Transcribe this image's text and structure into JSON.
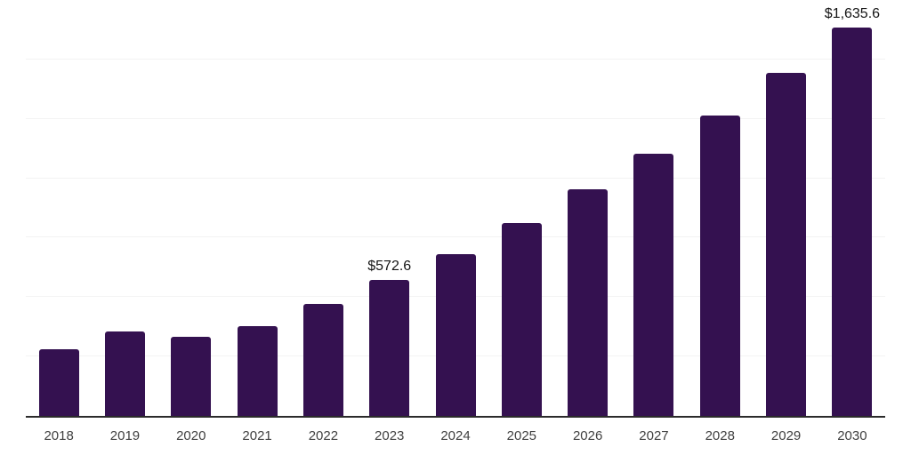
{
  "chart_data": {
    "type": "bar",
    "title": "",
    "xlabel": "",
    "ylabel": "",
    "categories": [
      "2018",
      "2019",
      "2020",
      "2021",
      "2022",
      "2023",
      "2024",
      "2025",
      "2026",
      "2027",
      "2028",
      "2029",
      "2030"
    ],
    "values": [
      279,
      357,
      334,
      379,
      471,
      572.6,
      680,
      810,
      955,
      1104,
      1264,
      1442,
      1635.6
    ],
    "data_labels": [
      "",
      "",
      "",
      "",
      "",
      "$572.6",
      "",
      "",
      "",
      "",
      "",
      "",
      "$1,635.6"
    ],
    "ylim": [
      0,
      1750
    ],
    "gridline_interval": 250,
    "grid": "horizontal",
    "legend": "none",
    "bar_color": "#341150",
    "axis_line_color": "#2b2b2b",
    "gridline_color": "#f3f3f3",
    "tick_label_color": "#404040",
    "data_label_color": "#141414",
    "background_color": "#ffffff"
  }
}
